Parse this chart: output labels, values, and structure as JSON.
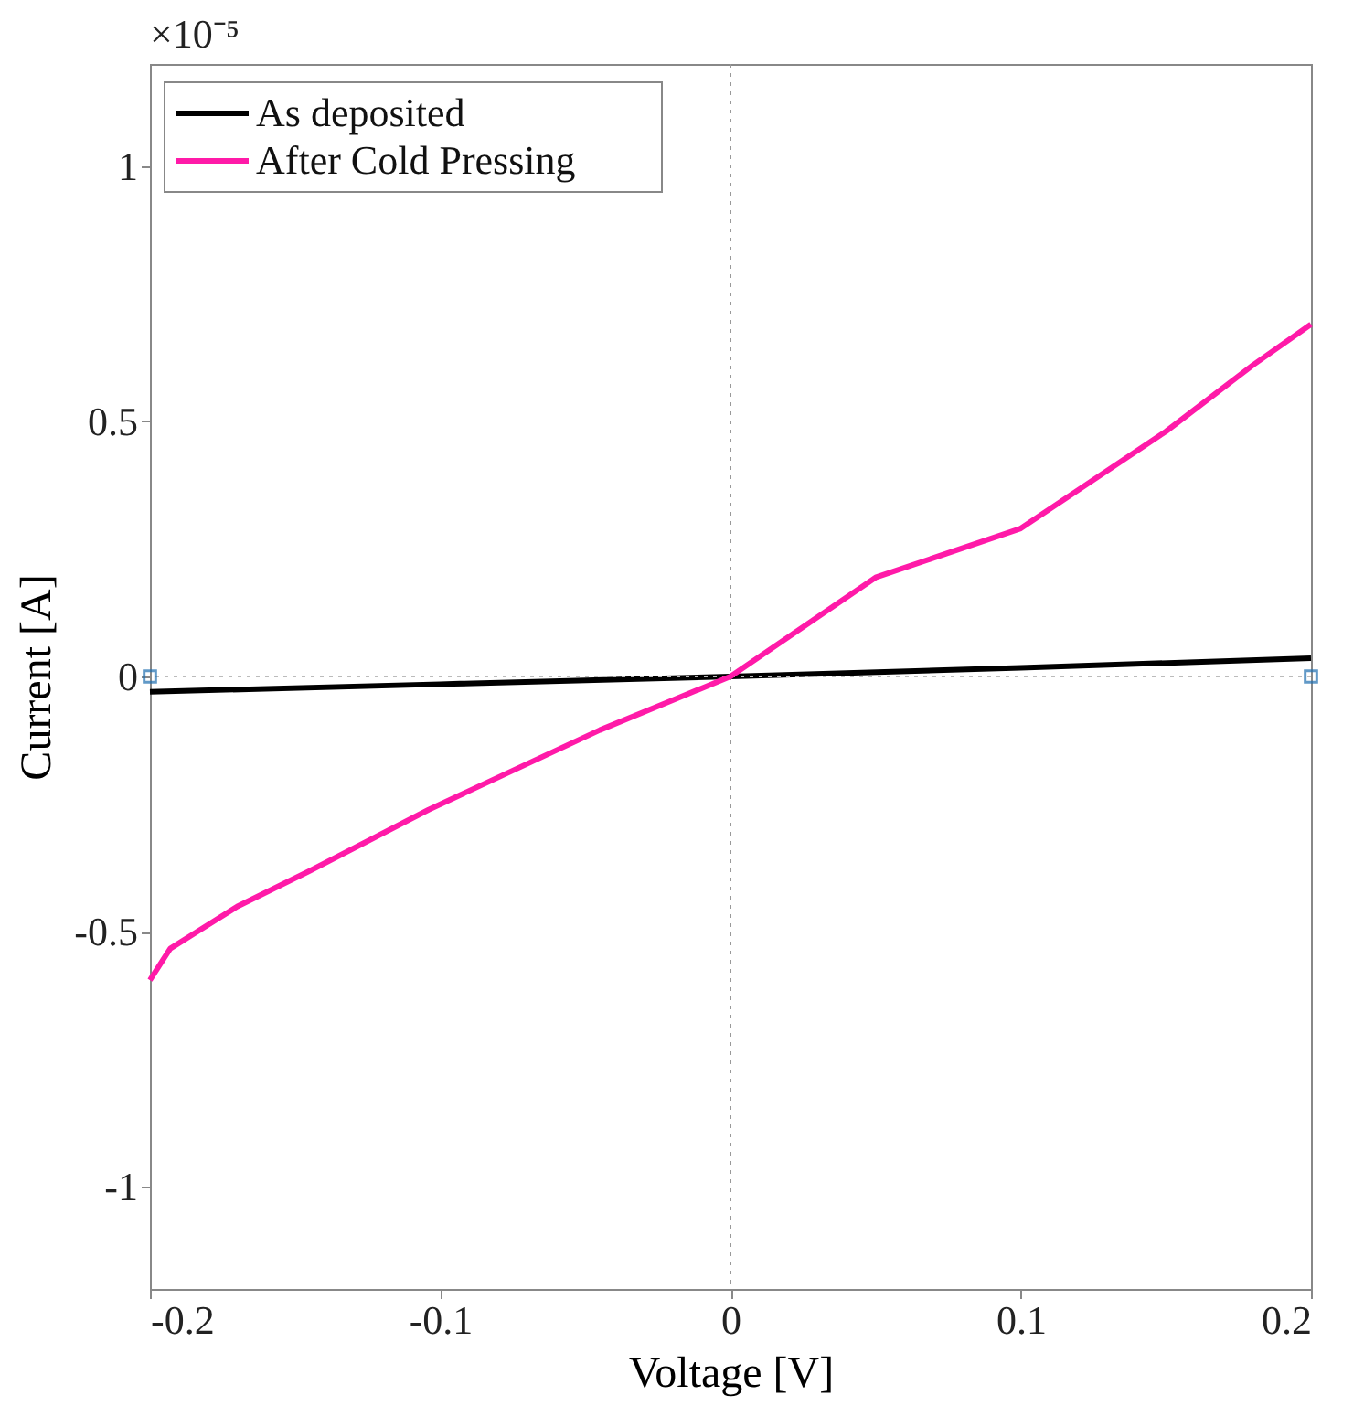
{
  "chart_data": {
    "type": "line",
    "xlabel": "Voltage [V]",
    "ylabel": "Current [A]",
    "annotations": [
      "×10⁻⁵"
    ],
    "xlim": [
      -0.2,
      0.2
    ],
    "xticks": [
      -0.2,
      -0.1,
      0,
      0.1,
      0.2
    ],
    "ylim": [
      -1.2,
      1.2
    ],
    "yticks": [
      -1,
      -0.5,
      0,
      0.5,
      1
    ],
    "grid": false,
    "legend": "top left",
    "ref_lines": [
      {
        "axis": "x",
        "value": 0,
        "color": "#999999",
        "line_style": "dotted"
      },
      {
        "axis": "y",
        "value": 0,
        "color": "#bbbbbb",
        "line_style": "dotted"
      }
    ],
    "series": [
      {
        "name": "As deposited",
        "color": "#000000",
        "x": [
          -0.2,
          -0.1,
          0,
          0.1,
          0.2
        ],
        "values": [
          -0.03,
          -0.015,
          0,
          0.017,
          0.036
        ]
      },
      {
        "name": "After Cold Pressing",
        "color": "#ff1aa8",
        "x": [
          -0.2,
          -0.193,
          -0.17,
          -0.145,
          -0.104,
          -0.045,
          0,
          0.05,
          0.1,
          0.15,
          0.18,
          0.2
        ],
        "values": [
          -0.595,
          -0.533,
          -0.451,
          -0.381,
          -0.261,
          -0.105,
          0,
          0.194,
          0.29,
          0.48,
          0.61,
          0.69
        ]
      },
      {
        "type": "scatter",
        "marker": "square",
        "color": "#1f6fb0",
        "x": [
          -0.2,
          0.2
        ],
        "values": [
          0,
          0
        ]
      }
    ]
  }
}
